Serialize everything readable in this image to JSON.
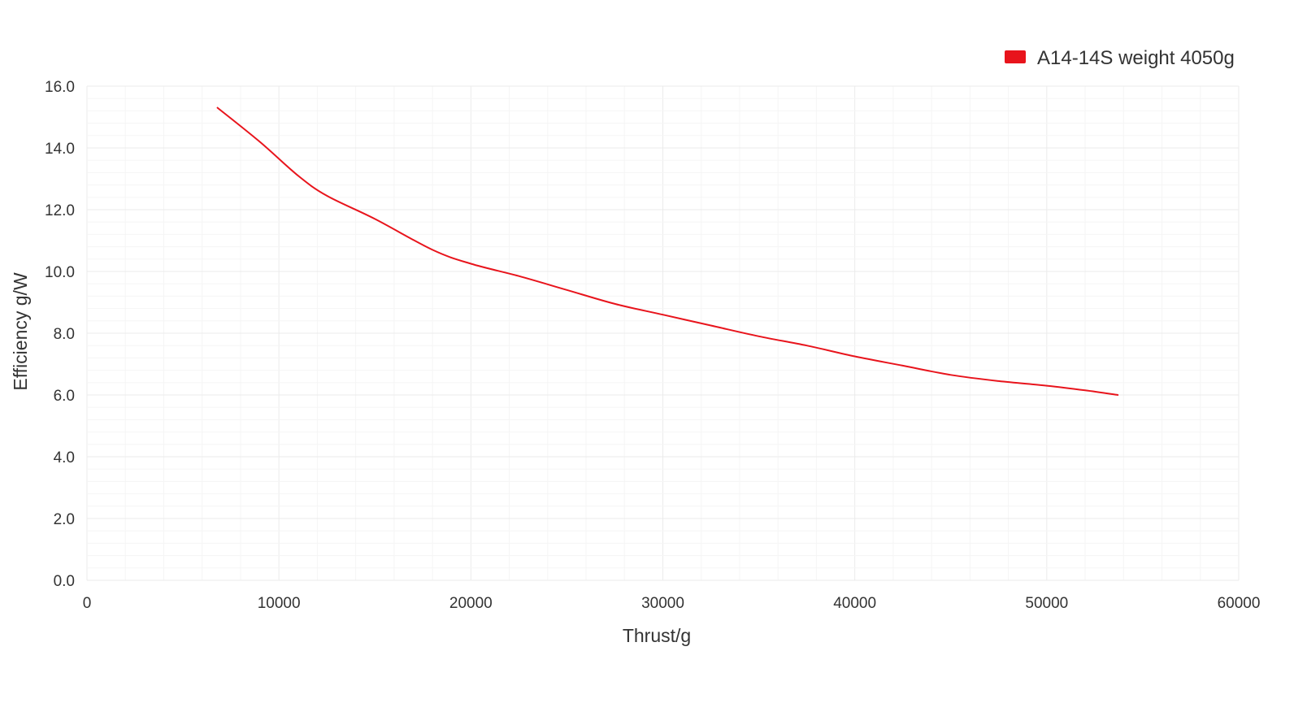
{
  "chart_data": {
    "type": "line",
    "title": "",
    "xlabel": "Thrust/g",
    "ylabel": "Efficiency g/W",
    "xlim": [
      0,
      60000
    ],
    "ylim": [
      0,
      16
    ],
    "x_ticks": [
      0,
      10000,
      20000,
      30000,
      40000,
      50000,
      60000
    ],
    "x_tick_labels": [
      "0",
      "10000",
      "20000",
      "30000",
      "40000",
      "50000",
      "60000"
    ],
    "y_ticks": [
      0,
      2,
      4,
      6,
      8,
      10,
      12,
      14,
      16
    ],
    "y_tick_labels": [
      "0.0",
      "2.0",
      "4.0",
      "6.0",
      "8.0",
      "10.0",
      "12.0",
      "14.0",
      "16.0"
    ],
    "grid": true,
    "legend_position": "top-right",
    "series": [
      {
        "name": "A14-14S weight 4050g",
        "color": "#e8141c",
        "x": [
          6800,
          9000,
          11000,
          12500,
          15000,
          18000,
          20000,
          22500,
          25000,
          27500,
          30000,
          32500,
          35000,
          37500,
          40000,
          42500,
          45000,
          47500,
          50000,
          52000,
          53700
        ],
        "y": [
          15.3,
          14.2,
          13.1,
          12.45,
          11.7,
          10.7,
          10.25,
          9.85,
          9.4,
          8.95,
          8.6,
          8.25,
          7.9,
          7.6,
          7.25,
          6.95,
          6.65,
          6.45,
          6.3,
          6.15,
          6.0
        ]
      }
    ]
  }
}
